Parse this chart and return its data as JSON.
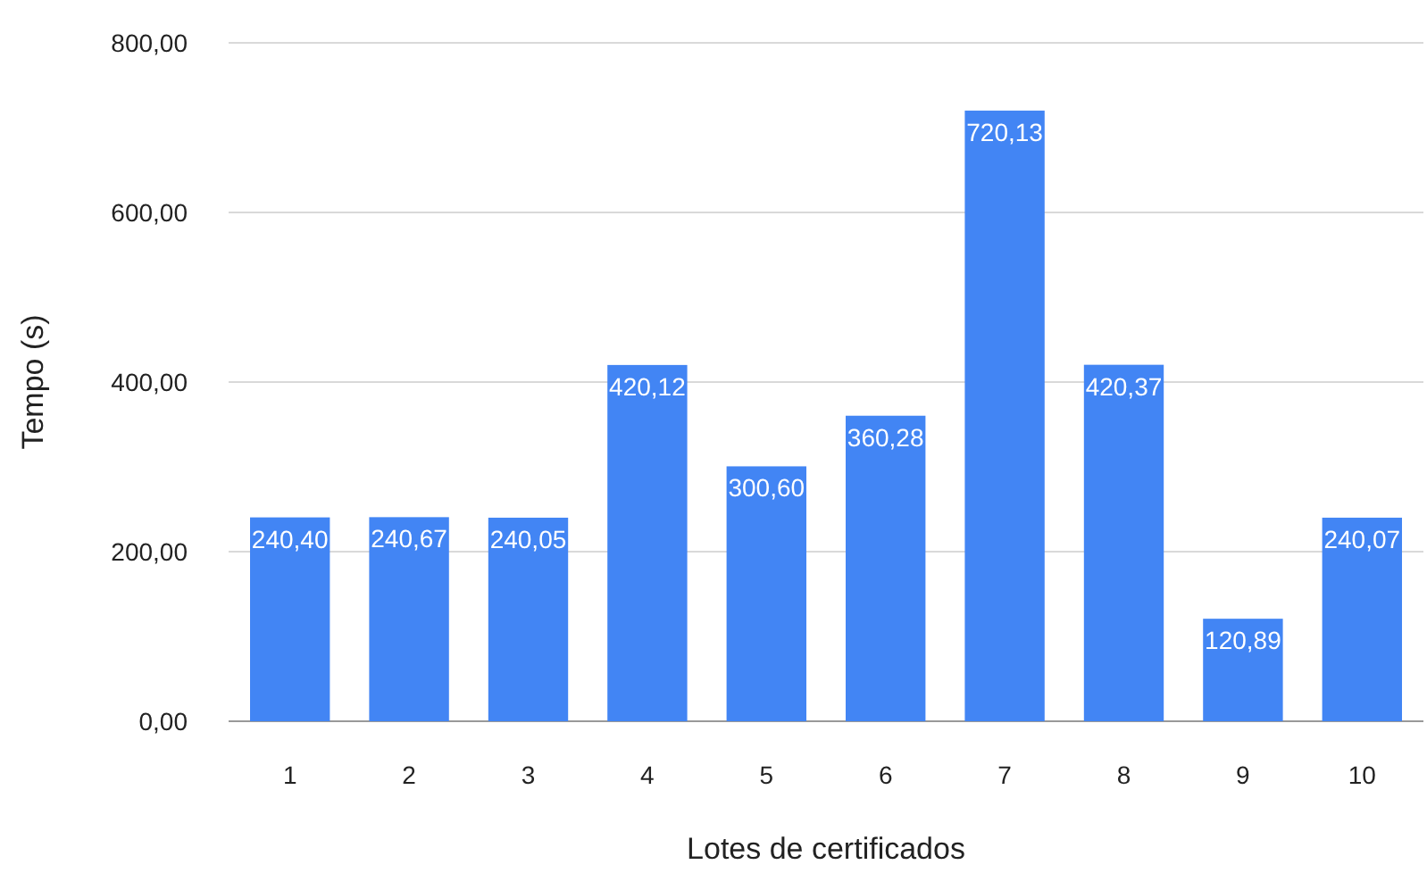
{
  "chart_data": {
    "type": "bar",
    "xlabel": "Lotes de certificados",
    "ylabel": "Tempo (s)",
    "categories": [
      "1",
      "2",
      "3",
      "4",
      "5",
      "6",
      "7",
      "8",
      "9",
      "10"
    ],
    "values": [
      240.4,
      240.67,
      240.05,
      420.12,
      300.6,
      360.28,
      720.13,
      420.37,
      120.89,
      240.07
    ],
    "value_labels": [
      "240,40",
      "240,67",
      "240,05",
      "420,12",
      "300,60",
      "360,28",
      "720,13",
      "420,37",
      "120,89",
      "240,07"
    ],
    "color": "#4285f4",
    "ylim": [
      0,
      800
    ],
    "yticks": [
      {
        "value": 0,
        "label": "0,00"
      },
      {
        "value": 200,
        "label": "200,00"
      },
      {
        "value": 400,
        "label": "400,00"
      },
      {
        "value": 600,
        "label": "600,00"
      },
      {
        "value": 800,
        "label": "800,00"
      }
    ],
    "grid": "y"
  }
}
